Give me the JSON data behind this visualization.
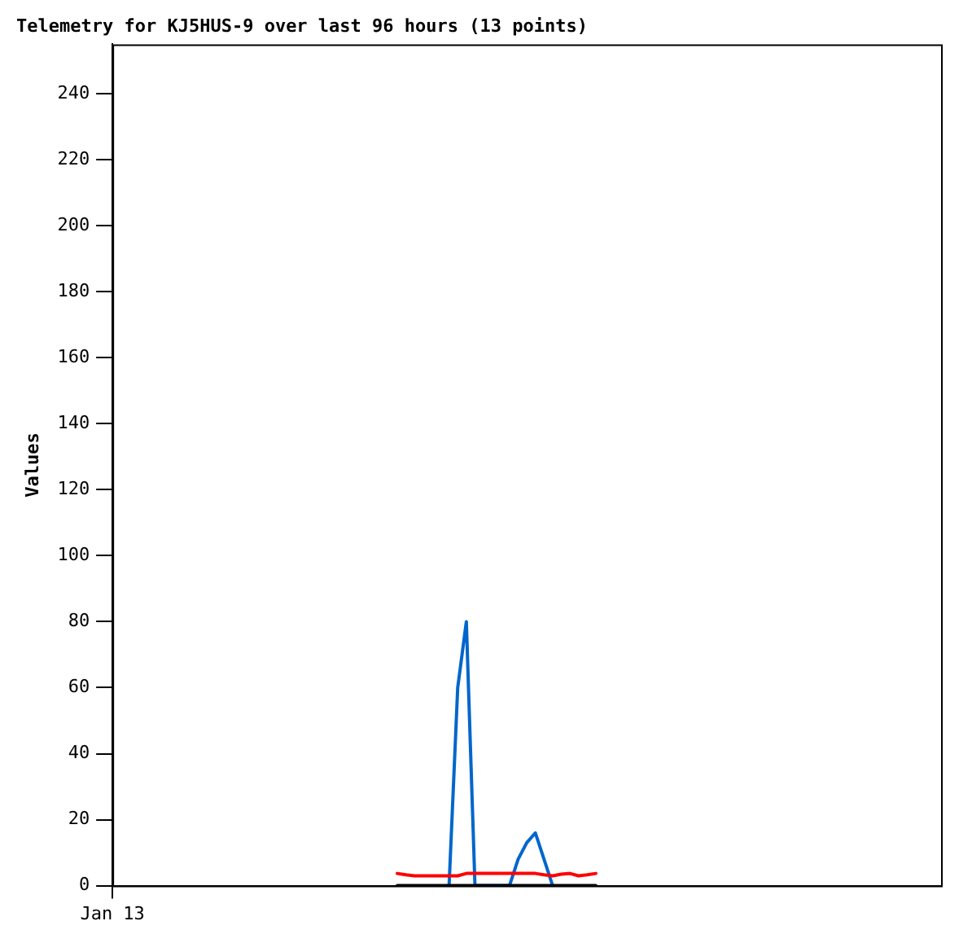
{
  "chart_data": {
    "type": "line",
    "title": "Telemetry for KJ5HUS-9 over last 96 hours (13 points)",
    "ylabel": "Values",
    "categories": [
      "Jan 13",
      null,
      null,
      null,
      null,
      null,
      null,
      null,
      null,
      null,
      null,
      null,
      null,
      null,
      null,
      null,
      null,
      null,
      null,
      null,
      null,
      null,
      null,
      null,
      null,
      null,
      null,
      null,
      null,
      null,
      null,
      null,
      null,
      null,
      null,
      null,
      null,
      null,
      null,
      null,
      null,
      null,
      null,
      null,
      null,
      null,
      null,
      null,
      null,
      null,
      null,
      null,
      null,
      null,
      null,
      null,
      null,
      null,
      null,
      null,
      null,
      null,
      null,
      null,
      null,
      null,
      null,
      null,
      null,
      null,
      null,
      null,
      null,
      null,
      null,
      null,
      null,
      null,
      null,
      null,
      null,
      null,
      null,
      null,
      null,
      null,
      null,
      null,
      null,
      null,
      null,
      null,
      null,
      null,
      null,
      null,
      null
    ],
    "ylim": [
      0,
      255
    ],
    "yticks": [
      0,
      20,
      40,
      60,
      80,
      100,
      120,
      140,
      160,
      180,
      200,
      220,
      240
    ],
    "grid": false,
    "legend": false,
    "marker": "none",
    "line_style": "solid",
    "series": [
      {
        "color": "#000000",
        "values": [
          null,
          null,
          null,
          null,
          null,
          null,
          null,
          null,
          null,
          null,
          null,
          null,
          null,
          null,
          null,
          null,
          null,
          null,
          null,
          null,
          null,
          null,
          null,
          null,
          null,
          null,
          null,
          null,
          null,
          null,
          null,
          null,
          null,
          0,
          0,
          0,
          0,
          0,
          0,
          0,
          0,
          0,
          0,
          0,
          0,
          0,
          0,
          0,
          0,
          0,
          0,
          0,
          0,
          0,
          0,
          0,
          0,
          null,
          null,
          null,
          null,
          null,
          null,
          null,
          null,
          null,
          null,
          null,
          null,
          null,
          null,
          null,
          null,
          null,
          null,
          null,
          null,
          null,
          null,
          null,
          null,
          null,
          null,
          null,
          null,
          null,
          null,
          null,
          null,
          null,
          null,
          null,
          null,
          null,
          null,
          null,
          null
        ]
      },
      {
        "color": "#ff0000",
        "values": [
          null,
          null,
          null,
          null,
          null,
          null,
          null,
          null,
          null,
          null,
          null,
          null,
          null,
          null,
          null,
          null,
          null,
          null,
          null,
          null,
          null,
          null,
          null,
          null,
          null,
          null,
          null,
          null,
          null,
          null,
          null,
          null,
          null,
          3.7,
          3.3,
          3,
          3,
          3,
          3,
          3,
          3,
          3.7,
          3.7,
          3.7,
          3.7,
          3.7,
          3.7,
          3.7,
          3.7,
          3.7,
          3.3,
          3,
          3.5,
          3.7,
          3,
          3.3,
          3.7,
          null,
          null,
          null,
          null,
          null,
          null,
          null,
          null,
          null,
          null,
          null,
          null,
          null,
          null,
          null,
          null,
          null,
          null,
          null,
          null,
          null,
          null,
          null,
          null,
          null,
          null,
          null,
          null,
          null,
          null,
          null,
          null,
          null,
          null,
          null,
          null,
          null,
          null,
          null,
          null
        ]
      },
      {
        "color": "#0066cc",
        "values": [
          null,
          null,
          null,
          null,
          null,
          null,
          null,
          null,
          null,
          null,
          null,
          null,
          null,
          null,
          null,
          null,
          null,
          null,
          null,
          null,
          null,
          null,
          null,
          null,
          null,
          null,
          null,
          null,
          null,
          null,
          null,
          null,
          null,
          null,
          null,
          null,
          null,
          null,
          null,
          0,
          60,
          80,
          0,
          0,
          0,
          0,
          0,
          8,
          13,
          16,
          8,
          0,
          null,
          null,
          null,
          null,
          null,
          null,
          null,
          null,
          null,
          null,
          null,
          null,
          null,
          null,
          null,
          null,
          null,
          null,
          null,
          null,
          null,
          null,
          null,
          null,
          null,
          null,
          null,
          null,
          null,
          null,
          null,
          null,
          null,
          null,
          null,
          null,
          null,
          null,
          null,
          null,
          null,
          null,
          null,
          null,
          null
        ]
      }
    ]
  }
}
